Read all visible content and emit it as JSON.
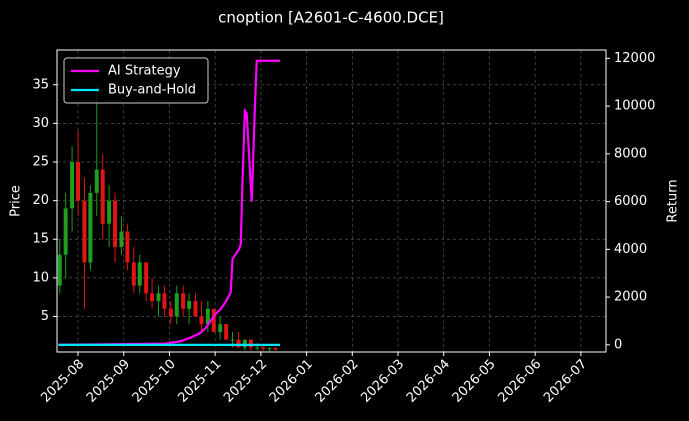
{
  "chart_data": {
    "type": "candlestick",
    "title": "cnoption [A2601-C-4600.DCE]",
    "ylabel": "Price",
    "y2label": "Return",
    "x": [
      -0.4,
      -0.27,
      -0.13,
      0.0,
      0.14,
      0.27,
      0.41,
      0.54,
      0.68,
      0.81,
      0.95,
      1.08,
      1.22,
      1.35,
      1.49,
      1.62,
      1.76,
      1.89,
      2.03,
      2.16,
      2.3,
      2.43,
      2.57,
      2.7,
      2.84,
      2.97,
      3.11,
      3.24,
      3.38,
      3.51,
      3.65,
      3.78,
      3.92,
      4.05,
      4.19,
      4.32
    ],
    "open": [
      9,
      13,
      19,
      25,
      20,
      12,
      21,
      24,
      17,
      20,
      14,
      16,
      12,
      9,
      12,
      8,
      7,
      8,
      6,
      5,
      8,
      6,
      7,
      5,
      4,
      6,
      3,
      4,
      2,
      2,
      1,
      2,
      1,
      1,
      0.8,
      0.9
    ],
    "high": [
      15,
      21,
      27,
      29,
      23,
      22,
      35,
      26,
      22,
      21,
      18,
      17,
      14,
      13,
      12,
      10,
      9,
      9,
      7,
      9,
      9,
      8,
      8,
      7,
      7,
      6,
      5,
      4,
      3,
      3,
      2,
      2,
      1.5,
      1.2,
      1,
      1
    ],
    "low": [
      8,
      10,
      16,
      18,
      6,
      11,
      18,
      15,
      14,
      12,
      13,
      11,
      8,
      8,
      7,
      6,
      5,
      5,
      4,
      4,
      5,
      4,
      5,
      3,
      3,
      3,
      2,
      2,
      1,
      1,
      0.6,
      0.6,
      0.6,
      0.5,
      0.5,
      0.6
    ],
    "close": [
      13,
      19,
      25,
      20,
      12,
      21,
      24,
      17,
      20,
      14,
      16,
      12,
      9,
      12,
      8,
      7,
      8,
      6,
      5,
      8,
      6,
      7,
      5,
      4,
      6,
      3,
      4,
      2,
      2,
      1,
      2,
      1,
      1,
      0.8,
      0.9,
      0.7
    ],
    "up_color": "#1f9e1f",
    "down_color": "#e01515",
    "series": [
      {
        "name": "AI Strategy",
        "color": "#ff00ff",
        "axis": "y2",
        "x": [
          -0.43,
          1.91,
          2.24,
          2.46,
          2.68,
          2.79,
          2.9,
          3.01,
          3.12,
          3.23,
          3.34,
          3.38,
          3.52,
          3.56,
          3.6,
          3.65,
          3.69,
          3.74,
          3.8,
          3.87,
          3.91,
          4.42
        ],
        "values": [
          0,
          50,
          150,
          300,
          500,
          700,
          1000,
          1300,
          1500,
          1800,
          2200,
          3600,
          4000,
          4200,
          7000,
          9800,
          9700,
          8000,
          6000,
          10000,
          11900,
          11900
        ]
      },
      {
        "name": "Buy-and-Hold",
        "color": "#00e5ff",
        "axis": "y2",
        "x": [
          -0.43,
          4.42
        ],
        "values": [
          0,
          0
        ]
      }
    ],
    "xlim": [
      -0.46,
      11.55
    ],
    "xticks": [
      {
        "value": 0,
        "label": "2025-08"
      },
      {
        "value": 1,
        "label": "2025-09"
      },
      {
        "value": 2,
        "label": "2025-10"
      },
      {
        "value": 3,
        "label": "2025-11"
      },
      {
        "value": 4,
        "label": "2025-12"
      },
      {
        "value": 5,
        "label": "2026-01"
      },
      {
        "value": 6,
        "label": "2026-02"
      },
      {
        "value": 7,
        "label": "2026-03"
      },
      {
        "value": 8,
        "label": "2026-04"
      },
      {
        "value": 9,
        "label": "2026-05"
      },
      {
        "value": 10,
        "label": "2026-06"
      },
      {
        "value": 11,
        "label": "2026-07"
      }
    ],
    "ylim": [
      0.4,
      39.5
    ],
    "yticks": [
      5,
      10,
      15,
      20,
      25,
      30,
      35
    ],
    "y2lim": [
      -300,
      12350
    ],
    "y2ticks": [
      0,
      2000,
      4000,
      6000,
      8000,
      10000,
      12000
    ],
    "grid": true,
    "legend": "upper left"
  }
}
